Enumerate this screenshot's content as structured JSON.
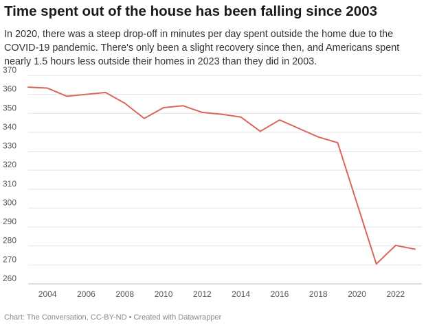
{
  "chart_data": {
    "type": "line",
    "title": "Time spent out of the house has been falling since 2003",
    "subtitle": "In 2020, there was a steep drop-off in minutes per day spent outside the home due to the COVID-19 pandemic. There's only been a slight recovery since then, and Americans spent nearly 1.5 hours less outside their homes in 2023 than they did in 2003.",
    "xlabel": "",
    "ylabel": "",
    "x": [
      2003,
      2004,
      2005,
      2006,
      2007,
      2008,
      2009,
      2010,
      2011,
      2012,
      2013,
      2014,
      2015,
      2016,
      2017,
      2018,
      2019,
      2020,
      2021,
      2022,
      2023
    ],
    "series": [
      {
        "values": [
          363.8,
          363.3,
          359.0,
          360.0,
          361.0,
          355.3,
          347.3,
          353.0,
          354.0,
          350.5,
          349.5,
          348.0,
          340.5,
          346.5,
          342.0,
          337.5,
          334.5,
          302.5,
          270.5,
          280.3,
          278.3
        ],
        "color": "#d9665c"
      }
    ],
    "xlim": [
      2003,
      2023
    ],
    "ylim": [
      260,
      370
    ],
    "x_ticks": [
      "2004",
      "2006",
      "2008",
      "2010",
      "2012",
      "2014",
      "2016",
      "2018",
      "2020",
      "2022"
    ],
    "y_ticks": [
      "260",
      "270",
      "280",
      "290",
      "300",
      "310",
      "320",
      "330",
      "340",
      "350",
      "360",
      "370"
    ],
    "grid": true,
    "grid_axis": "y"
  },
  "source_note": "Chart: The Conversation, CC-BY-ND • Created with Datawrapper",
  "colors": {
    "line": "#d9665c",
    "grid": "#e2e2e2",
    "tick_text": "#555555",
    "title_text": "#1a1a1a",
    "note_text": "#888888"
  }
}
